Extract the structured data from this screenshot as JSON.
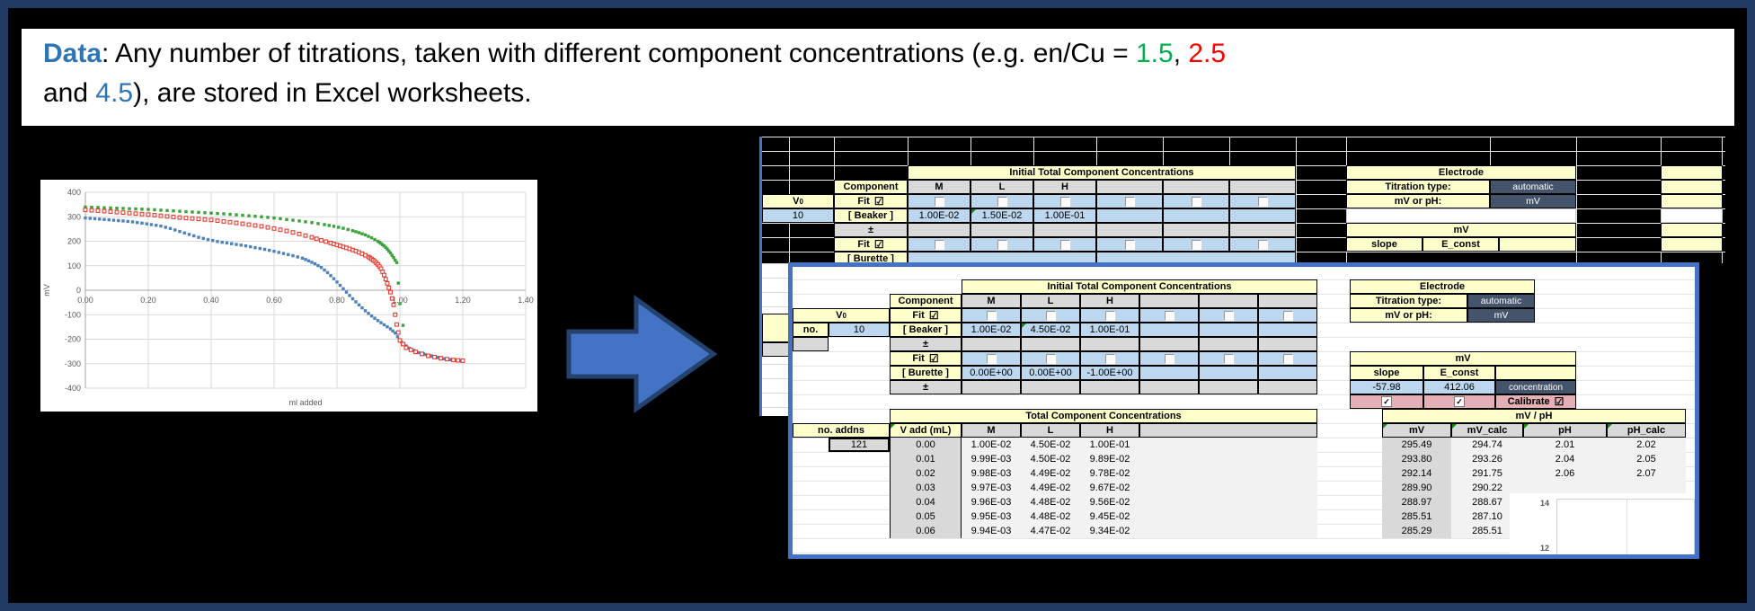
{
  "banner": {
    "label": "Data",
    "colon": ": ",
    "text1": "Any number of titrations, taken with different component concentrations (e.g. en/Cu = ",
    "ratio1": "1.5",
    "comma1": ", ",
    "ratio2": "2.5",
    "line2_prefix": "and ",
    "ratio3": "4.5",
    "line2_suffix": "), are stored in Excel worksheets.",
    "colors": {
      "label": "#2e75b6",
      "ratio1": "#00b050",
      "ratio2": "#ff0000",
      "ratio3": "#2e75b6"
    }
  },
  "arrow": {
    "fill": "#4472c4",
    "stroke": "#24426e"
  },
  "glyphs": {
    "check": "☑",
    "tick": "✓"
  },
  "chart_data": {
    "type": "scatter",
    "title": "",
    "xlabel": "ml added",
    "ylabel": "mV",
    "xlim": [
      0,
      1.4
    ],
    "ylim": [
      -400,
      400
    ],
    "xticks": [
      "0.00",
      "0.20",
      "0.40",
      "0.60",
      "0.80",
      "1.00",
      "1.20",
      "1.40"
    ],
    "yticks": [
      400,
      300,
      200,
      100,
      0,
      -100,
      -200,
      -300,
      -400
    ],
    "grid": true,
    "legend": "none",
    "series": [
      {
        "name": "series-green",
        "color": "#3aa23a",
        "marker": "square",
        "points": [
          [
            0,
            340
          ],
          [
            0.04,
            338
          ],
          [
            0.08,
            336
          ],
          [
            0.12,
            334
          ],
          [
            0.16,
            332
          ],
          [
            0.2,
            330
          ],
          [
            0.24,
            327
          ],
          [
            0.28,
            324
          ],
          [
            0.32,
            321
          ],
          [
            0.36,
            318
          ],
          [
            0.4,
            315
          ],
          [
            0.44,
            312
          ],
          [
            0.48,
            308
          ],
          [
            0.52,
            304
          ],
          [
            0.56,
            300
          ],
          [
            0.6,
            295
          ],
          [
            0.64,
            289
          ],
          [
            0.68,
            283
          ],
          [
            0.72,
            276
          ],
          [
            0.76,
            268
          ],
          [
            0.79,
            261
          ],
          [
            0.82,
            253
          ],
          [
            0.85,
            243
          ],
          [
            0.87,
            235
          ],
          [
            0.89,
            226
          ],
          [
            0.91,
            214
          ],
          [
            0.93,
            200
          ],
          [
            0.94,
            191
          ],
          [
            0.95,
            181
          ],
          [
            0.96,
            168
          ],
          [
            0.97,
            152
          ],
          [
            0.98,
            133
          ],
          [
            0.99,
            113
          ],
          [
            1.0,
            -55
          ],
          [
            1.02,
            -232
          ],
          [
            1.05,
            -252
          ],
          [
            1.1,
            -268
          ],
          [
            1.15,
            -281
          ],
          [
            1.2,
            -290
          ]
        ]
      },
      {
        "name": "series-blue",
        "color": "#4e81bd",
        "marker": "square",
        "points": [
          [
            0,
            295
          ],
          [
            0.03,
            292
          ],
          [
            0.06,
            289
          ],
          [
            0.09,
            286
          ],
          [
            0.12,
            283
          ],
          [
            0.15,
            279
          ],
          [
            0.18,
            274
          ],
          [
            0.21,
            268
          ],
          [
            0.24,
            262
          ],
          [
            0.27,
            252
          ],
          [
            0.3,
            240
          ],
          [
            0.33,
            228
          ],
          [
            0.36,
            216
          ],
          [
            0.39,
            207
          ],
          [
            0.42,
            199
          ],
          [
            0.45,
            193
          ],
          [
            0.48,
            187
          ],
          [
            0.51,
            181
          ],
          [
            0.54,
            174
          ],
          [
            0.57,
            167
          ],
          [
            0.6,
            159
          ],
          [
            0.63,
            150
          ],
          [
            0.66,
            141
          ],
          [
            0.69,
            131
          ],
          [
            0.71,
            120
          ],
          [
            0.73,
            108
          ],
          [
            0.75,
            93
          ],
          [
            0.77,
            72
          ],
          [
            0.79,
            47
          ],
          [
            0.81,
            20
          ],
          [
            0.83,
            -8
          ],
          [
            0.85,
            -35
          ],
          [
            0.87,
            -60
          ],
          [
            0.89,
            -84
          ],
          [
            0.91,
            -105
          ],
          [
            0.93,
            -124
          ],
          [
            0.95,
            -141
          ],
          [
            0.97,
            -158
          ],
          [
            0.985,
            -175
          ],
          [
            1.0,
            -205
          ],
          [
            1.01,
            -218
          ],
          [
            1.03,
            -237
          ],
          [
            1.06,
            -255
          ],
          [
            1.1,
            -270
          ],
          [
            1.14,
            -280
          ],
          [
            1.18,
            -287
          ],
          [
            1.2,
            -290
          ]
        ]
      },
      {
        "name": "series-red",
        "color": "#e63b2e",
        "marker": "open-square",
        "points": [
          [
            0,
            328
          ],
          [
            0.04,
            325
          ],
          [
            0.08,
            321
          ],
          [
            0.12,
            317
          ],
          [
            0.16,
            313
          ],
          [
            0.2,
            309
          ],
          [
            0.24,
            304
          ],
          [
            0.28,
            299
          ],
          [
            0.32,
            295
          ],
          [
            0.36,
            291
          ],
          [
            0.4,
            287
          ],
          [
            0.44,
            281
          ],
          [
            0.48,
            275
          ],
          [
            0.52,
            268
          ],
          [
            0.56,
            261
          ],
          [
            0.6,
            252
          ],
          [
            0.64,
            242
          ],
          [
            0.68,
            230
          ],
          [
            0.72,
            216
          ],
          [
            0.75,
            204
          ],
          [
            0.78,
            193
          ],
          [
            0.8,
            185
          ],
          [
            0.82,
            177
          ],
          [
            0.84,
            169
          ],
          [
            0.86,
            160
          ],
          [
            0.88,
            149
          ],
          [
            0.9,
            136
          ],
          [
            0.91,
            128
          ],
          [
            0.92,
            118
          ],
          [
            0.93,
            105
          ],
          [
            0.94,
            88
          ],
          [
            0.95,
            62
          ],
          [
            0.96,
            28
          ],
          [
            0.97,
            -8
          ],
          [
            0.98,
            -60
          ],
          [
            0.99,
            -140
          ],
          [
            1.0,
            -205
          ],
          [
            1.02,
            -235
          ],
          [
            1.05,
            -252
          ],
          [
            1.09,
            -268
          ],
          [
            1.13,
            -278
          ],
          [
            1.17,
            -285
          ],
          [
            1.2,
            -288
          ]
        ]
      }
    ]
  },
  "back_sheet": {
    "initial_title": "Initial Total Component Concentrations",
    "component": "Component",
    "cols": [
      "M",
      "L",
      "H"
    ],
    "v0": "V",
    "v0_sub": "0",
    "v0_value": "10",
    "fit": "Fit",
    "beaker": "[ Beaker ]",
    "beaker_values": [
      "1.00E-02",
      "1.50E-02",
      "1.00E-01"
    ],
    "pm": "±",
    "electrode": "Electrode",
    "titration_type_label": "Titration type:",
    "titration_type_value": "automatic",
    "mv_or_ph_label": "mV or pH:",
    "mv_or_ph_value": "mV",
    "mv_header": "mV",
    "slope": "slope",
    "e_const": "E_const",
    "burette": "[ Burette ]"
  },
  "front_sheet": {
    "initial_title": "Initial Total Component Concentrations",
    "component": "Component",
    "cols": [
      "M",
      "L",
      "H"
    ],
    "no_label": "no.",
    "v0": "V",
    "v0_sub": "0",
    "v0_value": "10",
    "fit": "Fit",
    "beaker": "[ Beaker ]",
    "beaker_values": [
      "1.00E-02",
      "4.50E-02",
      "1.00E-01"
    ],
    "pm": "±",
    "burette": "[ Burette ]",
    "burette_values": [
      "0.00E+00",
      "0.00E+00",
      "-1.00E+00"
    ],
    "total_title": "Total Component Concentrations",
    "no_addns": "no. addns",
    "addns_value": "121",
    "v_add": "V add (mL)",
    "electrode": "Electrode",
    "titration_type_label": "Titration type:",
    "titration_type_value": "automatic",
    "mv_or_ph_label": "mV or pH:",
    "mv_or_ph_value": "mV",
    "mv_header": "mV",
    "slope": "slope",
    "e_const": "E_const",
    "slope_value": "-57.98",
    "e_const_value": "412.06",
    "concentration": "concentration",
    "calibrate": "Calibrate",
    "mvph_title": "mV / pH",
    "mvph_cols": [
      "mV",
      "mV_calc",
      "pH",
      "pH_calc"
    ],
    "rows": [
      {
        "v": "0.00",
        "M": "1.00E-02",
        "L": "4.50E-02",
        "H": "1.00E-01",
        "mv": "295.49",
        "mvc": "294.74",
        "ph": "2.01",
        "phc": "2.02"
      },
      {
        "v": "0.01",
        "M": "9.99E-03",
        "L": "4.50E-02",
        "H": "9.89E-02",
        "mv": "293.80",
        "mvc": "293.26",
        "ph": "2.04",
        "phc": "2.05"
      },
      {
        "v": "0.02",
        "M": "9.98E-03",
        "L": "4.49E-02",
        "H": "9.78E-02",
        "mv": "292.14",
        "mvc": "291.75",
        "ph": "2.06",
        "phc": "2.07"
      },
      {
        "v": "0.03",
        "M": "9.97E-03",
        "L": "4.49E-02",
        "H": "9.67E-02",
        "mv": "289.90",
        "mvc": "290.22",
        "ph": "",
        "phc": ""
      },
      {
        "v": "0.04",
        "M": "9.96E-03",
        "L": "4.48E-02",
        "H": "9.56E-02",
        "mv": "288.97",
        "mvc": "288.67",
        "ph": "",
        "phc": ""
      },
      {
        "v": "0.05",
        "M": "9.95E-03",
        "L": "4.48E-02",
        "H": "9.45E-02",
        "mv": "285.51",
        "mvc": "287.10",
        "ph": "",
        "phc": ""
      },
      {
        "v": "0.06",
        "M": "9.94E-03",
        "L": "4.47E-02",
        "H": "9.34E-02",
        "mv": "285.29",
        "mvc": "285.51",
        "ph": "",
        "phc": ""
      }
    ],
    "mini_chart_ticks": [
      "14",
      "12"
    ]
  }
}
